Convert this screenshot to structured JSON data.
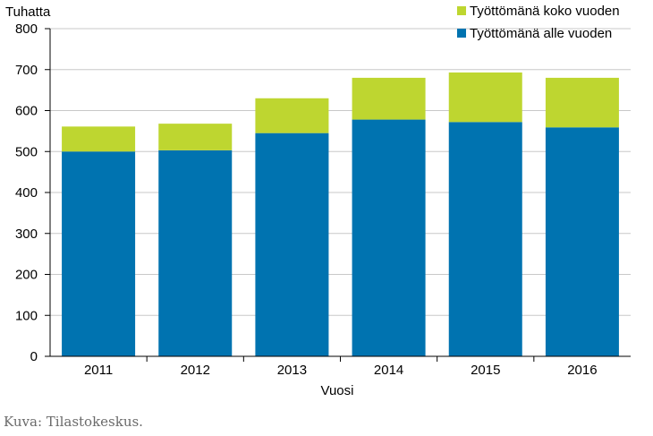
{
  "chart_data": {
    "type": "bar",
    "stacked": true,
    "ylabel": "Tuhatta",
    "xlabel": "Vuosi",
    "categories": [
      "2011",
      "2012",
      "2013",
      "2014",
      "2015",
      "2016"
    ],
    "series": [
      {
        "name": "Työttömänä alle vuoden",
        "color": "#0073b0",
        "values": [
          500,
          503,
          545,
          578,
          572,
          559
        ]
      },
      {
        "name": "Työttömänä koko vuoden",
        "color": "#bed630",
        "values": [
          61,
          65,
          85,
          102,
          121,
          121
        ]
      }
    ],
    "ylim": [
      0,
      800
    ],
    "yticks": [
      0,
      100,
      200,
      300,
      400,
      500,
      600,
      700,
      800
    ],
    "grid": true,
    "legend": "top-right"
  },
  "caption": "Kuva: Tilastokeskus."
}
